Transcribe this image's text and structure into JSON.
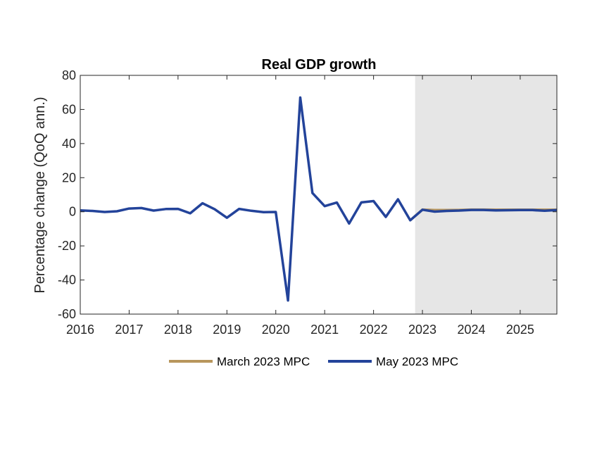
{
  "chart_data": {
    "type": "line",
    "title": "Real GDP growth",
    "xlabel": "",
    "ylabel": "Percentage change (QoQ ann.)",
    "xlim": [
      2016.0,
      2025.75
    ],
    "ylim": [
      -60,
      80
    ],
    "x_ticks": [
      "2016",
      "2017",
      "2018",
      "2019",
      "2020",
      "2021",
      "2022",
      "2023",
      "2024",
      "2025"
    ],
    "y_ticks": [
      "80",
      "60",
      "40",
      "20",
      "0",
      "-20",
      "-40",
      "-60"
    ],
    "grid": false,
    "legend_position": "bottom",
    "forecast_shading": {
      "start": 2022.85,
      "end": 2025.75,
      "color": "#e6e6e6"
    },
    "series": [
      {
        "name": "March 2023 MPC",
        "color": "#b8965c",
        "x": [
          2022.75,
          2023.0,
          2023.25,
          2023.5,
          2023.75,
          2024.0,
          2024.25,
          2024.5,
          2024.75,
          2025.0,
          2025.25,
          2025.5,
          2025.75
        ],
        "y": [
          -5.0,
          1.3,
          1.0,
          1.0,
          1.1,
          1.3,
          1.3,
          1.2,
          1.2,
          1.2,
          1.2,
          1.2,
          1.2
        ]
      },
      {
        "name": "May 2023 MPC",
        "color": "#23439a",
        "x": [
          2016.0,
          2016.25,
          2016.5,
          2016.75,
          2017.0,
          2017.25,
          2017.5,
          2017.75,
          2018.0,
          2018.25,
          2018.5,
          2018.75,
          2019.0,
          2019.25,
          2019.5,
          2019.75,
          2020.0,
          2020.25,
          2020.5,
          2020.75,
          2021.0,
          2021.25,
          2021.5,
          2021.75,
          2022.0,
          2022.25,
          2022.5,
          2022.75,
          2023.0,
          2023.25,
          2023.5,
          2023.75,
          2024.0,
          2024.25,
          2024.5,
          2024.75,
          2025.0,
          2025.25,
          2025.5,
          2025.75
        ],
        "y": [
          0.8,
          0.5,
          -0.1,
          0.3,
          1.9,
          2.2,
          0.7,
          1.6,
          1.7,
          -0.9,
          5.0,
          1.5,
          -3.5,
          1.7,
          0.6,
          -0.2,
          -0.1,
          -52.0,
          67.0,
          11.0,
          3.3,
          5.4,
          -6.9,
          5.5,
          6.3,
          -3.0,
          7.3,
          -5.0,
          1.2,
          0.1,
          0.5,
          0.7,
          1.1,
          1.1,
          0.8,
          0.9,
          1.0,
          1.0,
          0.6,
          1.0
        ]
      }
    ]
  }
}
